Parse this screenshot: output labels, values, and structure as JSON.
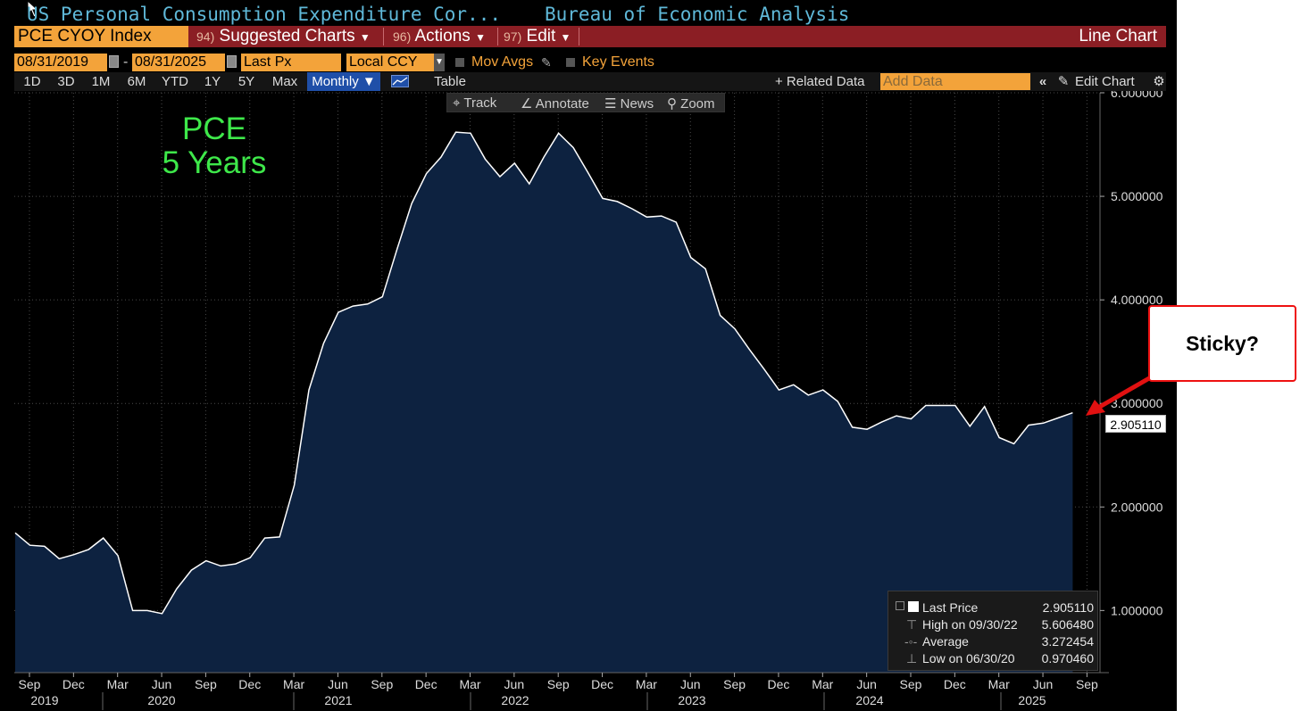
{
  "window": {
    "title": "US Personal Consumption Expenditure Cor...",
    "source": "Bureau of Economic Analysis"
  },
  "menubar": {
    "ticker": "PCE CYOY Index",
    "suggested_num": "94)",
    "suggested_label": "Suggested Charts",
    "actions_num": "96)",
    "actions_label": "Actions",
    "edit_num": "97)",
    "edit_label": "Edit",
    "chart_type": "Line Chart"
  },
  "controls": {
    "start_date": "08/31/2019",
    "end_date": "08/31/2025",
    "dash": "-",
    "field": "Last Px",
    "currency": "Local CCY",
    "mov_avgs": "Mov Avgs",
    "key_events": "Key Events"
  },
  "ranges": {
    "items": [
      "1D",
      "3D",
      "1M",
      "6M",
      "YTD",
      "1Y",
      "5Y",
      "Max"
    ],
    "frequency": "Monthly ▼",
    "table": "Table",
    "related": "+ Related Data",
    "add_data_placeholder": "Add Data",
    "edit_chart": "Edit Chart"
  },
  "toolbar": {
    "track": "Track",
    "annotate": "Annotate",
    "news": "News",
    "zoom": "Zoom"
  },
  "annotation": {
    "line1": "PCE",
    "line2": "5 Years",
    "callout": "Sticky?"
  },
  "last_value_label": "2.905110",
  "legend": {
    "last_price_label": "Last Price",
    "last_price_value": "2.905110",
    "high_label": "High on 09/30/22",
    "high_value": "5.606480",
    "average_label": "Average",
    "average_value": "3.272454",
    "low_label": "Low on 06/30/20",
    "low_value": "0.970460"
  },
  "colors": {
    "area_fill": "#0d2240",
    "line": "#ffffff",
    "accent_orange": "#f3a33a",
    "menu_red": "#8b1e24",
    "annotation_green": "#3ee84a",
    "callout_red": "#e11111"
  },
  "chart_data": {
    "type": "area",
    "ylim": [
      0.4,
      6.0
    ],
    "y_ticks": [
      "1.000000",
      "2.000000",
      "3.000000",
      "4.000000",
      "5.000000",
      "6.000000"
    ],
    "x_month_ticks": [
      "Sep",
      "Dec",
      "Mar",
      "Jun",
      "Sep",
      "Dec",
      "Mar",
      "Jun",
      "Sep",
      "Dec",
      "Mar",
      "Jun",
      "Sep",
      "Dec",
      "Mar",
      "Jun",
      "Sep",
      "Dec",
      "Mar",
      "Jun",
      "Sep",
      "Dec",
      "Mar",
      "Jun",
      "Sep"
    ],
    "x_year_ticks": [
      "2019",
      "2020",
      "2021",
      "2022",
      "2023",
      "2024",
      "2025"
    ],
    "grid": true,
    "series": [
      {
        "values": [
          1.75,
          1.63,
          1.62,
          1.5,
          1.54,
          1.59,
          1.7,
          1.53,
          1.0,
          1.0,
          0.97,
          1.21,
          1.39,
          1.48,
          1.43,
          1.45,
          1.51,
          1.7,
          1.71,
          2.21,
          3.13,
          3.58,
          3.88,
          3.94,
          3.96,
          4.03,
          4.49,
          4.93,
          5.22,
          5.38,
          5.62,
          5.61,
          5.36,
          5.19,
          5.32,
          5.12,
          5.38,
          5.61,
          5.47,
          5.23,
          4.98,
          4.95,
          4.88,
          4.8,
          4.81,
          4.75,
          4.41,
          4.3,
          3.85,
          3.72,
          3.52,
          3.33,
          3.13,
          3.18,
          3.08,
          3.13,
          3.02,
          2.77,
          2.75,
          2.82,
          2.88,
          2.85,
          2.98,
          2.98,
          2.98,
          2.78,
          2.97,
          2.67,
          2.61,
          2.79,
          2.81,
          2.86,
          2.91
        ]
      }
    ]
  }
}
